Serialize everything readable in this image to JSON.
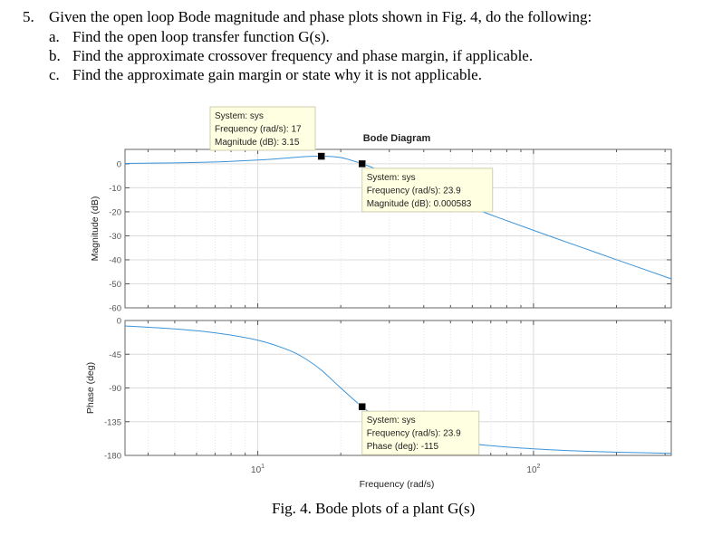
{
  "question": {
    "number": "5.",
    "prompt": "Given the open loop Bode magnitude and phase plots shown in Fig. 4, do the following:",
    "items": [
      {
        "label": "a.",
        "text": "Find the open loop transfer function G(s)."
      },
      {
        "label": "b.",
        "text": "Find the approximate crossover frequency and phase margin, if applicable."
      },
      {
        "label": "c.",
        "text": "Find the approximate gain margin or state why it is not applicable."
      }
    ]
  },
  "caption": "Fig. 4.  Bode plots of a plant G(s)",
  "chart_data": {
    "type": "line",
    "title": "Bode Diagram",
    "xlabel": "Frequency  (rad/s)",
    "xscale": "log",
    "xlim": [
      3.3,
      316
    ],
    "xticks": [
      {
        "base": "10",
        "exp": "1",
        "value": 10
      },
      {
        "base": "10",
        "exp": "2",
        "value": 100
      }
    ],
    "grid": true,
    "line_color": "#3b94d9",
    "panels": [
      {
        "name": "magnitude",
        "ylabel": "Magnitude (dB)",
        "ylim": [
          -60,
          6
        ],
        "yticks": [
          0,
          -10,
          -20,
          -30,
          -40,
          -50,
          -60
        ],
        "series": {
          "x": [
            3.3,
            5,
            7,
            10,
            13,
            15,
            17,
            20,
            23.9,
            28,
            35,
            50,
            70,
            100,
            150,
            200,
            316
          ],
          "y": [
            0.17,
            0.39,
            0.77,
            1.55,
            2.48,
            3.02,
            3.15,
            2.61,
            0.0006,
            -3.0,
            -7.73,
            -14.91,
            -21.25,
            -27.71,
            -34.89,
            -39.94,
            -47.92
          ]
        },
        "datatips": [
          {
            "x": 17,
            "y": 3.15,
            "lines": [
              "System: sys",
              "Frequency (rad/s): 17",
              "Magnitude (dB): 3.15"
            ]
          },
          {
            "x": 23.9,
            "y": 0.000583,
            "lines": [
              "System: sys",
              "Frequency (rad/s): 23.9",
              "Magnitude (dB): 0.000583"
            ]
          }
        ]
      },
      {
        "name": "phase",
        "ylabel": "Phase (deg)",
        "ylim": [
          -180,
          0
        ],
        "yticks": [
          0,
          -45,
          -90,
          -135,
          -180
        ],
        "series": {
          "x": [
            3.3,
            5,
            7,
            10,
            13,
            15,
            17,
            20,
            23.9,
            28,
            35,
            50,
            70,
            100,
            150,
            200,
            316
          ],
          "y": [
            -7.2,
            -11.2,
            -16.4,
            -26.3,
            -39.8,
            -51.8,
            -66.2,
            -90,
            -115,
            -132.8,
            -147.9,
            -160.6,
            -167,
            -171.2,
            -174.3,
            -175.7,
            -177.3
          ]
        },
        "datatips": [
          {
            "x": 23.9,
            "y": -115,
            "lines": [
              "System: sys",
              "Frequency (rad/s): 23.9",
              "Phase (deg): -115"
            ]
          }
        ]
      }
    ]
  }
}
